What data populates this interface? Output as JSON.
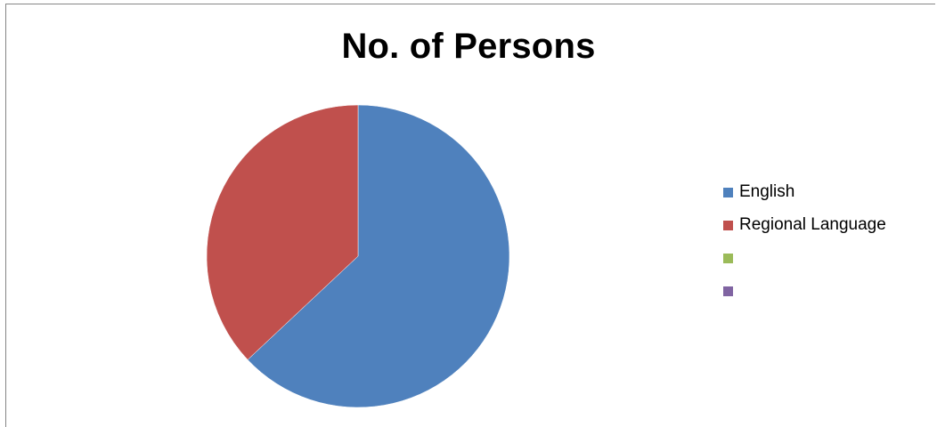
{
  "chart_data": {
    "type": "pie",
    "title": "No. of Persons",
    "slices": [
      {
        "label": "English",
        "value": 63,
        "color": "#4f81bd"
      },
      {
        "label": "Regional Language",
        "value": 37,
        "color": "#c0504d"
      },
      {
        "label": "",
        "value": 0,
        "color": "#9bbb59"
      },
      {
        "label": "",
        "value": 0,
        "color": "#8064a2"
      }
    ],
    "start_angle_deg": 0,
    "direction": "clockwise",
    "legend_position": "right"
  }
}
